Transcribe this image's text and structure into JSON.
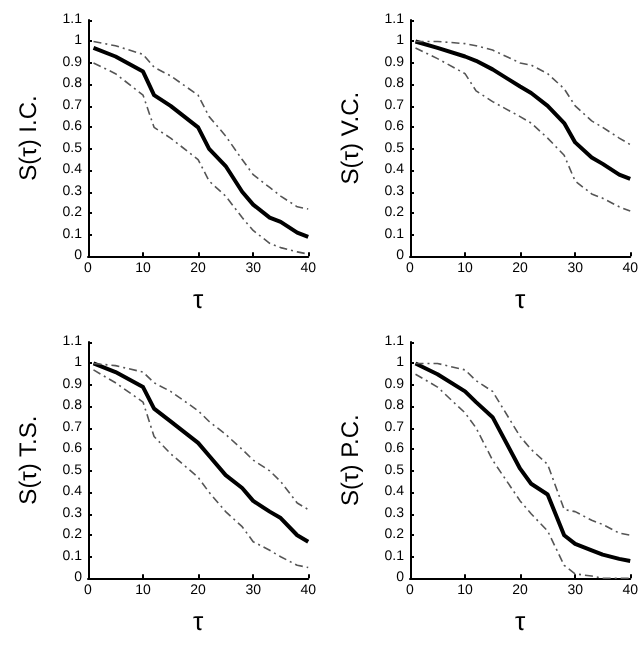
{
  "chart_data": [
    {
      "type": "line",
      "xlabel": "τ",
      "ylabel": "S(τ) I.C.",
      "x": [
        1,
        5,
        10,
        12,
        15,
        20,
        22,
        25,
        28,
        30,
        33,
        35,
        38,
        40
      ],
      "xlim": [
        0,
        40
      ],
      "xticks": [
        0,
        10,
        20,
        30,
        40
      ],
      "ylim": [
        0,
        1.1
      ],
      "yticks": [
        0,
        0.1,
        0.2,
        0.3,
        0.4,
        0.5,
        0.6,
        0.7,
        0.8,
        0.9,
        1,
        1.1
      ],
      "grid": false,
      "marker": "none",
      "series": [
        {
          "color": "#000000",
          "line_style": "solid",
          "values": [
            0.97,
            0.93,
            0.86,
            0.75,
            0.7,
            0.6,
            0.5,
            0.42,
            0.3,
            0.24,
            0.18,
            0.16,
            0.11,
            0.09
          ]
        },
        {
          "color": "#555555",
          "line_style": "dashed",
          "values": [
            1.0,
            0.98,
            0.94,
            0.88,
            0.84,
            0.75,
            0.65,
            0.56,
            0.45,
            0.38,
            0.32,
            0.28,
            0.23,
            0.22
          ]
        },
        {
          "color": "#555555",
          "line_style": "dashed",
          "values": [
            0.9,
            0.85,
            0.75,
            0.6,
            0.55,
            0.45,
            0.35,
            0.28,
            0.18,
            0.12,
            0.06,
            0.04,
            0.02,
            0.01
          ]
        }
      ]
    },
    {
      "type": "line",
      "xlabel": "τ",
      "ylabel": "S(τ) V.C.",
      "x": [
        1,
        5,
        10,
        12,
        15,
        20,
        22,
        25,
        28,
        30,
        33,
        35,
        38,
        40
      ],
      "xlim": [
        0,
        40
      ],
      "xticks": [
        0,
        10,
        20,
        30,
        40
      ],
      "ylim": [
        0,
        1.1
      ],
      "yticks": [
        0,
        0.1,
        0.2,
        0.3,
        0.4,
        0.5,
        0.6,
        0.7,
        0.8,
        0.9,
        1,
        1.1
      ],
      "grid": false,
      "marker": "none",
      "series": [
        {
          "color": "#000000",
          "line_style": "solid",
          "values": [
            1.0,
            0.97,
            0.93,
            0.91,
            0.87,
            0.79,
            0.76,
            0.7,
            0.62,
            0.53,
            0.46,
            0.43,
            0.38,
            0.36
          ]
        },
        {
          "color": "#555555",
          "line_style": "dashed",
          "values": [
            1.0,
            1.0,
            0.99,
            0.98,
            0.96,
            0.9,
            0.89,
            0.85,
            0.78,
            0.7,
            0.63,
            0.6,
            0.55,
            0.52
          ]
        },
        {
          "color": "#555555",
          "line_style": "dashed",
          "values": [
            0.97,
            0.92,
            0.85,
            0.77,
            0.72,
            0.65,
            0.62,
            0.55,
            0.47,
            0.35,
            0.29,
            0.27,
            0.23,
            0.21
          ]
        }
      ]
    },
    {
      "type": "line",
      "xlabel": "τ",
      "ylabel": "S(τ) T.S.",
      "x": [
        1,
        5,
        10,
        12,
        15,
        20,
        22,
        25,
        28,
        30,
        33,
        35,
        38,
        40
      ],
      "xlim": [
        0,
        40
      ],
      "xticks": [
        0,
        10,
        20,
        30,
        40
      ],
      "ylim": [
        0,
        1.1
      ],
      "yticks": [
        0,
        0.1,
        0.2,
        0.3,
        0.4,
        0.5,
        0.6,
        0.7,
        0.8,
        0.9,
        1,
        1.1
      ],
      "grid": false,
      "marker": "none",
      "series": [
        {
          "color": "#000000",
          "line_style": "solid",
          "values": [
            1.0,
            0.96,
            0.89,
            0.79,
            0.73,
            0.63,
            0.57,
            0.48,
            0.42,
            0.36,
            0.31,
            0.28,
            0.2,
            0.17
          ]
        },
        {
          "color": "#555555",
          "line_style": "dashed",
          "values": [
            1.0,
            0.99,
            0.96,
            0.91,
            0.87,
            0.78,
            0.73,
            0.67,
            0.6,
            0.55,
            0.5,
            0.45,
            0.35,
            0.32
          ]
        },
        {
          "color": "#555555",
          "line_style": "dashed",
          "values": [
            0.97,
            0.91,
            0.82,
            0.66,
            0.58,
            0.47,
            0.4,
            0.31,
            0.24,
            0.17,
            0.13,
            0.1,
            0.06,
            0.05
          ]
        }
      ]
    },
    {
      "type": "line",
      "xlabel": "τ",
      "ylabel": "S(τ) P.C.",
      "x": [
        1,
        5,
        10,
        12,
        15,
        20,
        22,
        25,
        28,
        30,
        33,
        35,
        38,
        40
      ],
      "xlim": [
        0,
        40
      ],
      "xticks": [
        0,
        10,
        20,
        30,
        40
      ],
      "ylim": [
        0,
        1.1
      ],
      "yticks": [
        0,
        0.1,
        0.2,
        0.3,
        0.4,
        0.5,
        0.6,
        0.7,
        0.8,
        0.9,
        1,
        1.1
      ],
      "grid": false,
      "marker": "none",
      "series": [
        {
          "color": "#000000",
          "line_style": "solid",
          "values": [
            1.0,
            0.95,
            0.87,
            0.82,
            0.75,
            0.51,
            0.44,
            0.39,
            0.2,
            0.16,
            0.13,
            0.11,
            0.09,
            0.08
          ]
        },
        {
          "color": "#555555",
          "line_style": "dashed",
          "values": [
            1.0,
            1.0,
            0.97,
            0.92,
            0.87,
            0.66,
            0.6,
            0.53,
            0.32,
            0.31,
            0.27,
            0.25,
            0.21,
            0.2
          ]
        },
        {
          "color": "#555555",
          "line_style": "dashed",
          "values": [
            0.95,
            0.89,
            0.77,
            0.7,
            0.55,
            0.36,
            0.3,
            0.22,
            0.06,
            0.02,
            0.01,
            0.0,
            0.0,
            0.0
          ]
        }
      ]
    }
  ]
}
